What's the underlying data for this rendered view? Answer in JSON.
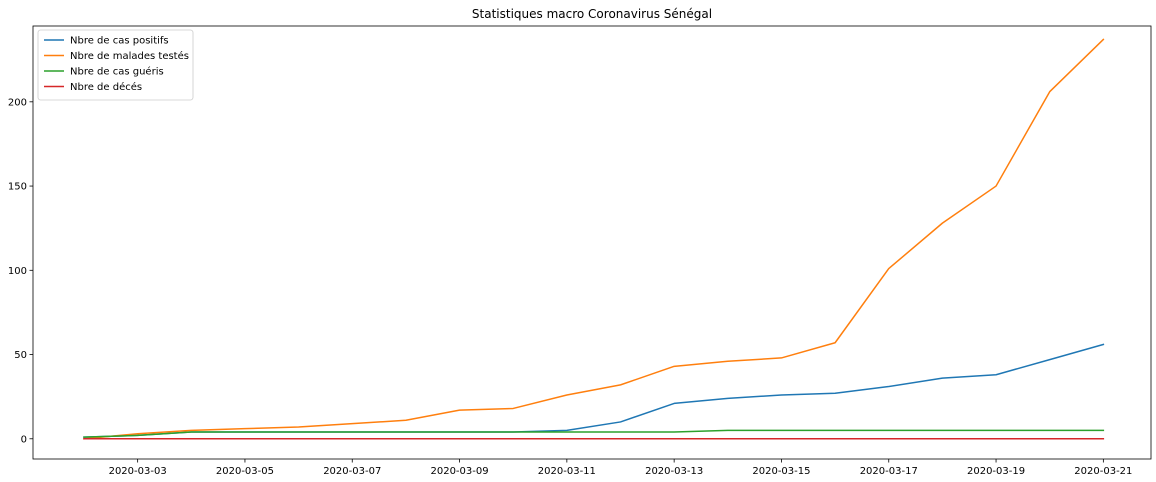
{
  "chart_data": {
    "type": "line",
    "title": "Statistiques macro Coronavirus Sénégal",
    "xlabel": "",
    "ylabel": "",
    "x": [
      "2020-03-02",
      "2020-03-03",
      "2020-03-04",
      "2020-03-05",
      "2020-03-06",
      "2020-03-07",
      "2020-03-08",
      "2020-03-09",
      "2020-03-10",
      "2020-03-11",
      "2020-03-12",
      "2020-03-13",
      "2020-03-14",
      "2020-03-15",
      "2020-03-16",
      "2020-03-17",
      "2020-03-18",
      "2020-03-19",
      "2020-03-20",
      "2020-03-21"
    ],
    "x_tick_labels": [
      "2020-03-03",
      "2020-03-05",
      "2020-03-07",
      "2020-03-09",
      "2020-03-11",
      "2020-03-13",
      "2020-03-15",
      "2020-03-17",
      "2020-03-19",
      "2020-03-21"
    ],
    "y_ticks": [
      0,
      50,
      100,
      150,
      200
    ],
    "ylim": [
      -12,
      245
    ],
    "grid": false,
    "legend_position": "top-left",
    "series": [
      {
        "name": "Nbre de cas positifs",
        "color": "#1f77b4",
        "values": [
          1,
          2,
          4,
          4,
          4,
          4,
          4,
          4,
          4,
          5,
          10,
          21,
          24,
          26,
          27,
          31,
          36,
          38,
          47,
          56
        ]
      },
      {
        "name": "Nbre de malades testés",
        "color": "#ff7f0e",
        "values": [
          0,
          3,
          5,
          6,
          7,
          9,
          11,
          17,
          18,
          26,
          32,
          43,
          46,
          48,
          57,
          101,
          128,
          150,
          206,
          237
        ]
      },
      {
        "name": "Nbre de cas guéris",
        "color": "#2ca02c",
        "values": [
          1,
          2,
          4,
          4,
          4,
          4,
          4,
          4,
          4,
          4,
          4,
          4,
          5,
          5,
          5,
          5,
          5,
          5,
          5,
          5
        ]
      },
      {
        "name": "Nbre de décés",
        "color": "#d62728",
        "values": [
          0,
          0,
          0,
          0,
          0,
          0,
          0,
          0,
          0,
          0,
          0,
          0,
          0,
          0,
          0,
          0,
          0,
          0,
          0,
          0
        ]
      }
    ]
  }
}
